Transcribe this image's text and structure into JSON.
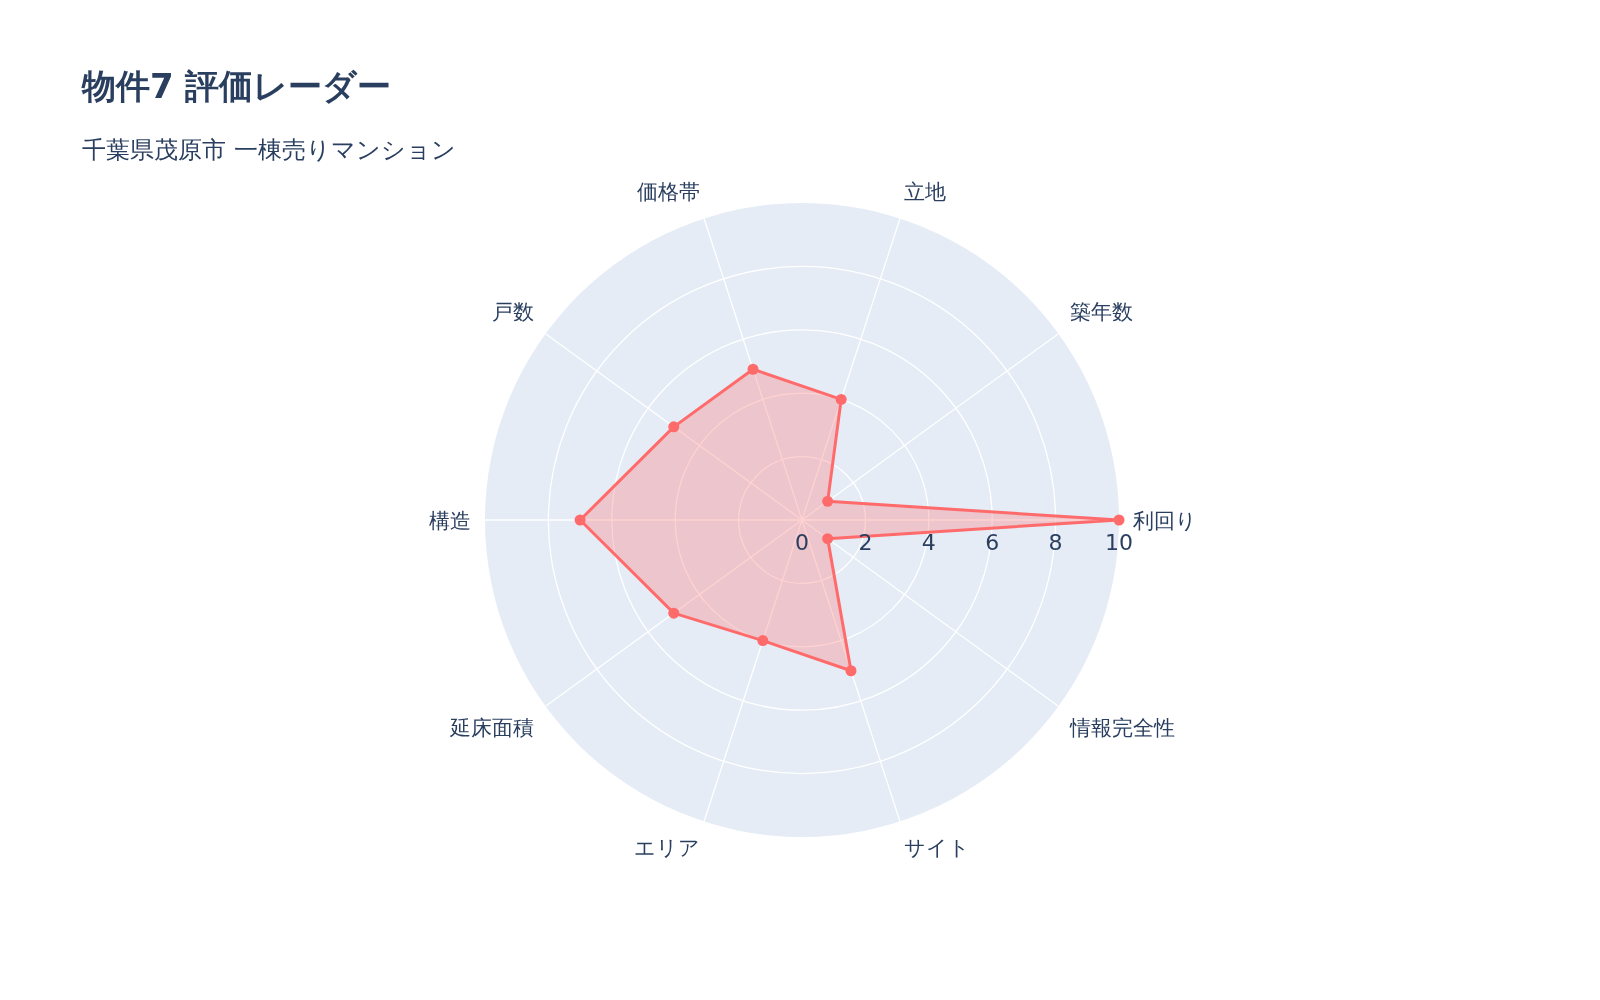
{
  "chart_data": {
    "type": "radar",
    "title": "物件7 評価レーダー",
    "subtitle": "千葉県茂原市 一棟売りマンション",
    "categories": [
      "立地",
      "築年数",
      "利回り",
      "情報完全性",
      "サイト",
      "エリア",
      "延床面積",
      "構造",
      "戸数",
      "価格帯"
    ],
    "series": [
      {
        "color": "#ff6b6b",
        "values": [
          4,
          1,
          10,
          1,
          5,
          4,
          5,
          7,
          5,
          5
        ]
      }
    ],
    "ylim": [
      0,
      10
    ],
    "yticks": [
      0,
      2,
      4,
      6,
      8,
      10
    ],
    "grid": true,
    "marker": "circle"
  }
}
